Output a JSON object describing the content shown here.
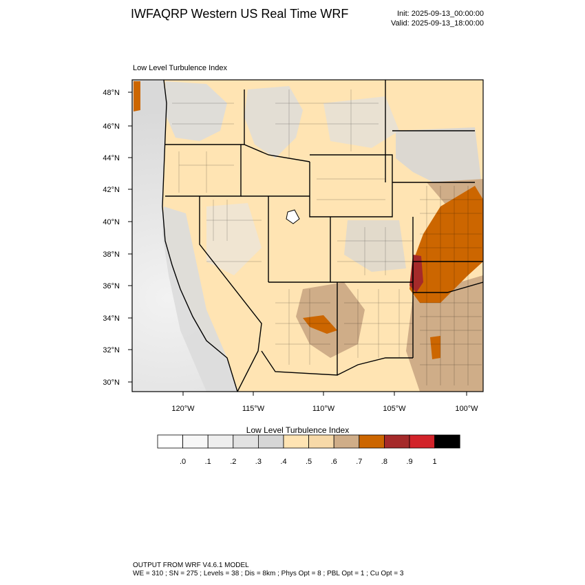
{
  "header": {
    "title": "IWFAQRP Western US Real Time WRF",
    "init": "Init: 2025-09-13_00:00:00",
    "valid": "Valid: 2025-09-13_18:00:00"
  },
  "plot": {
    "field_label": "Low Level Turbulence Index",
    "lat_labels": [
      "48°N",
      "46°N",
      "44°N",
      "42°N",
      "40°N",
      "38°N",
      "36°N",
      "34°N",
      "32°N",
      "30°N"
    ],
    "lon_labels": [
      "120°W",
      "115°W",
      "110°W",
      "105°W",
      "100°W"
    ]
  },
  "colorbar": {
    "title": "Low Level Turbulence Index",
    "labels": [
      ".0",
      ".1",
      ".2",
      ".3",
      ".4",
      ".5",
      ".6",
      ".7",
      ".8",
      ".9",
      "1"
    ],
    "colors": [
      "#ffffff",
      "#f7f7f7",
      "#eeeeee",
      "#e2e2e2",
      "#d6d6d6",
      "#ffe4b3",
      "#f7d9a8",
      "#cfad88",
      "#cc6600",
      "#a52a2a",
      "#d2232a",
      "#000000"
    ]
  },
  "footer": {
    "line1": "OUTPUT FROM WRF V4.6.1 MODEL",
    "line2": "WE = 310 ; SN = 275 ; Levels = 38 ; Dis = 8km ; Phys Opt = 8 ; PBL Opt = 1 ; Cu Opt = 3"
  }
}
